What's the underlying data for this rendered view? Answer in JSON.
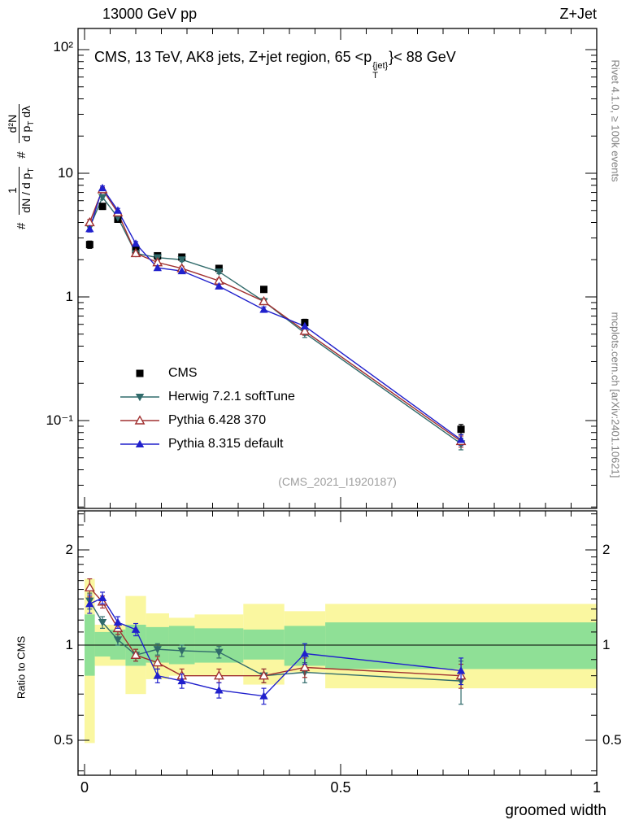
{
  "header": {
    "energy": "13000 GeV pp",
    "process": "Z+Jet"
  },
  "plot_title": {
    "pre": "CMS, 13 TeV, AK8 jets, Z+jet region, 65 <p",
    "sup": "{jet}",
    "sub": "T",
    "post": "}< 88 GeV"
  },
  "ylabel": {
    "h1": "#",
    "f1_num": "1",
    "f1_den": "dN / d p",
    "f1_den_sub": "T",
    "h2": "#",
    "f2_num": "d²N",
    "f2_den_a": "d p",
    "f2_den_sub": "T",
    "f2_den_b": " dλ"
  },
  "right_margin": {
    "top": "Rivet 4.1.0, ≥ 100k events",
    "bottom": "mcplots.cern.ch [arXiv:2401.10621]"
  },
  "watermark": "(CMS_2021_I1920187)",
  "x_axis": {
    "label": "groomed width",
    "ticks": [
      "0",
      "0.5",
      "1"
    ]
  },
  "y_axis_main": {
    "ticks": [
      "10²",
      "10",
      "1",
      "10⁻¹"
    ]
  },
  "y_axis_ratio": {
    "label": "Ratio to CMS",
    "ticks": [
      "2",
      "1",
      "0.5"
    ]
  },
  "colors": {
    "yellow_band": "#faf7a0",
    "green_band": "#8fe096",
    "frame": "#000000"
  },
  "chart_data": {
    "type": "line",
    "title": "CMS, 13 TeV, AK8 jets, Z+jet region, 65 < pT{jet} < 88 GeV",
    "xlabel": "groomed width",
    "ylabel": "# 1/(dN/dpT) # d²N/(dpT dλ)",
    "ratio_label": "Ratio to CMS",
    "x_range": [
      0,
      1
    ],
    "y_range_main": [
      0.02,
      140
    ],
    "ratio_range": [
      0.387,
      2.66
    ],
    "x": [
      0.01,
      0.035,
      0.065,
      0.1,
      0.1425,
      0.19,
      0.2625,
      0.35,
      0.43,
      0.735
    ],
    "bin_edges": [
      0,
      0.02,
      0.05,
      0.08,
      0.12,
      0.165,
      0.215,
      0.31,
      0.39,
      0.47,
      1.0
    ],
    "series": [
      {
        "name": "CMS",
        "color": "#000000",
        "marker": "square",
        "line": false,
        "values": [
          2.65,
          5.4,
          4.25,
          2.4,
          2.15,
          2.1,
          1.7,
          1.15,
          0.62,
          0.085
        ],
        "yerr": [
          0.18,
          0.3,
          0.22,
          0.13,
          0.11,
          0.1,
          0.08,
          0.06,
          0.04,
          0.008
        ]
      },
      {
        "name": "Herwig 7.2.1 softTune",
        "color": "#316b6b",
        "marker": "triangle-down",
        "line": true,
        "values": [
          3.65,
          6.4,
          4.4,
          2.25,
          2.08,
          2.0,
          1.6,
          0.92,
          0.51,
          0.065
        ],
        "yerr": [
          0.2,
          0.25,
          0.18,
          0.1,
          0.08,
          0.07,
          0.06,
          0.05,
          0.04,
          0.007
        ],
        "ratio": [
          1.38,
          1.18,
          1.04,
          0.93,
          0.97,
          0.96,
          0.95,
          0.8,
          0.82,
          0.77
        ],
        "ratio_err": [
          0.08,
          0.05,
          0.04,
          0.04,
          0.04,
          0.04,
          0.04,
          0.04,
          0.06,
          0.12
        ]
      },
      {
        "name": "Pythia 6.428 370",
        "color": "#a03030",
        "marker": "triangle-open",
        "line": true,
        "values": [
          4.0,
          7.4,
          4.8,
          2.25,
          1.9,
          1.7,
          1.35,
          0.92,
          0.53,
          0.068
        ],
        "yerr": [
          0.22,
          0.3,
          0.2,
          0.1,
          0.08,
          0.07,
          0.06,
          0.05,
          0.04,
          0.007
        ],
        "ratio": [
          1.52,
          1.37,
          1.13,
          0.93,
          0.88,
          0.8,
          0.8,
          0.8,
          0.85,
          0.8
        ],
        "ratio_err": [
          0.1,
          0.06,
          0.05,
          0.04,
          0.04,
          0.04,
          0.04,
          0.04,
          0.06,
          0.07
        ]
      },
      {
        "name": "Pythia 8.315 default",
        "color": "#2020cc",
        "marker": "triangle-up",
        "line": true,
        "values": [
          3.55,
          7.6,
          5.0,
          2.7,
          1.72,
          1.62,
          1.22,
          0.79,
          0.58,
          0.07
        ],
        "yerr": [
          0.2,
          0.3,
          0.2,
          0.1,
          0.07,
          0.07,
          0.05,
          0.04,
          0.04,
          0.007
        ],
        "ratio": [
          1.35,
          1.41,
          1.18,
          1.12,
          0.8,
          0.77,
          0.72,
          0.69,
          0.94,
          0.83
        ],
        "ratio_err": [
          0.09,
          0.06,
          0.05,
          0.05,
          0.04,
          0.04,
          0.04,
          0.04,
          0.07,
          0.08
        ]
      }
    ],
    "ratio_bands": {
      "yellow": [
        [
          0.49,
          1.62
        ],
        [
          0.86,
          1.16
        ],
        [
          0.86,
          1.16
        ],
        [
          0.7,
          1.43
        ],
        [
          0.78,
          1.26
        ],
        [
          0.8,
          1.22
        ],
        [
          0.8,
          1.25
        ],
        [
          0.75,
          1.35
        ],
        [
          0.82,
          1.28
        ],
        [
          0.73,
          1.35
        ]
      ],
      "green": [
        [
          0.8,
          1.25
        ],
        [
          0.92,
          1.1
        ],
        [
          0.9,
          1.12
        ],
        [
          0.86,
          1.16
        ],
        [
          0.88,
          1.14
        ],
        [
          0.87,
          1.15
        ],
        [
          0.88,
          1.13
        ],
        [
          0.9,
          1.12
        ],
        [
          0.86,
          1.15
        ],
        [
          0.84,
          1.18
        ]
      ]
    }
  }
}
